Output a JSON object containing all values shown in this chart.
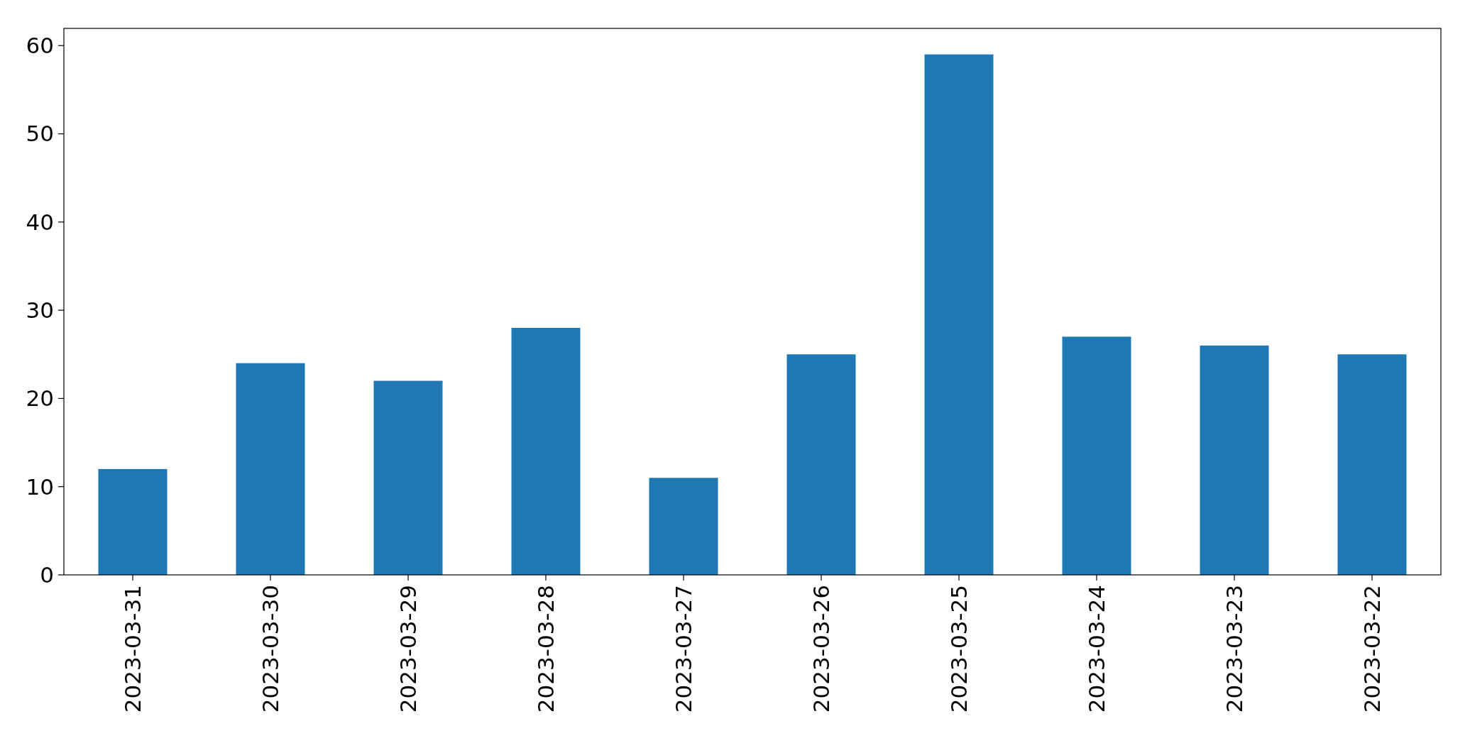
{
  "chart_data": {
    "type": "bar",
    "categories": [
      "2023-03-31",
      "2023-03-30",
      "2023-03-29",
      "2023-03-28",
      "2023-03-27",
      "2023-03-26",
      "2023-03-25",
      "2023-03-24",
      "2023-03-23",
      "2023-03-22"
    ],
    "values": [
      12,
      24,
      22,
      28,
      11,
      25,
      59,
      27,
      26,
      25
    ],
    "color": "#1f77b4",
    "ylim": [
      0,
      61.95
    ],
    "yticks": [
      0,
      10,
      20,
      30,
      40,
      50,
      60
    ],
    "grid": false
  }
}
